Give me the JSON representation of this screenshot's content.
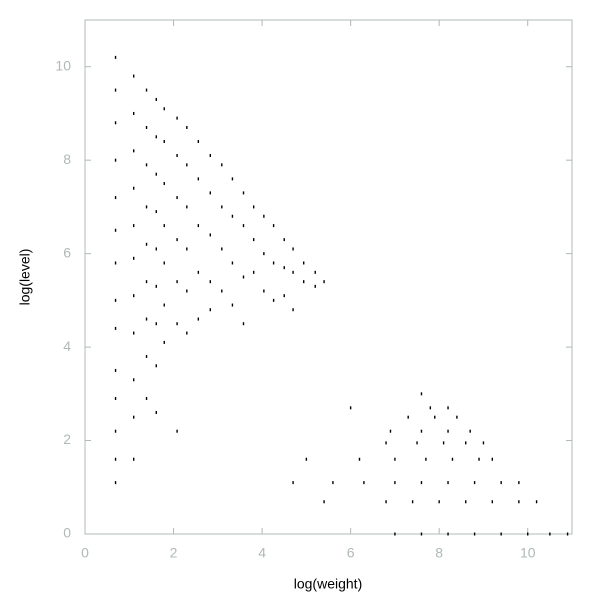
{
  "chart_data": {
    "type": "scatter",
    "xlabel": "log(weight)",
    "ylabel": "log(level)",
    "color": "#000000",
    "axis_color": "#b0b8b8",
    "xlim": [
      0,
      11
    ],
    "ylim": [
      0,
      11
    ],
    "xticks": [
      0,
      2,
      4,
      6,
      8,
      10
    ],
    "yticks": [
      0,
      2,
      4,
      6,
      8,
      10
    ],
    "x": [
      0.69,
      0.69,
      0.69,
      0.69,
      0.69,
      0.69,
      0.69,
      0.69,
      0.69,
      0.69,
      0.69,
      0.69,
      0.69,
      0.69,
      1.1,
      1.1,
      1.1,
      1.1,
      1.1,
      1.1,
      1.1,
      1.1,
      1.1,
      1.1,
      1.1,
      1.39,
      1.39,
      1.39,
      1.39,
      1.39,
      1.39,
      1.39,
      1.39,
      1.39,
      1.61,
      1.61,
      1.61,
      1.61,
      1.61,
      1.61,
      1.61,
      1.61,
      1.61,
      1.79,
      1.79,
      1.79,
      1.79,
      1.79,
      1.79,
      1.79,
      2.08,
      2.08,
      2.08,
      2.08,
      2.08,
      2.08,
      2.08,
      2.3,
      2.3,
      2.3,
      2.3,
      2.3,
      2.3,
      2.56,
      2.56,
      2.56,
      2.56,
      2.56,
      2.83,
      2.83,
      2.83,
      2.83,
      2.83,
      3.09,
      3.09,
      3.09,
      3.09,
      3.33,
      3.33,
      3.33,
      3.33,
      3.58,
      3.58,
      3.58,
      3.58,
      3.81,
      3.81,
      3.81,
      4.04,
      4.04,
      4.04,
      4.26,
      4.26,
      4.26,
      4.5,
      4.5,
      4.5,
      4.7,
      4.7,
      4.7,
      4.94,
      4.94,
      5.2,
      5.2,
      5.4,
      7.0,
      7.6,
      8.2,
      8.8,
      9.4,
      10.0,
      10.5,
      10.9,
      5.4,
      6.8,
      7.4,
      8.0,
      8.6,
      9.2,
      9.8,
      10.2,
      4.7,
      5.6,
      6.3,
      7.0,
      7.6,
      8.2,
      8.8,
      9.4,
      9.8,
      5.0,
      6.2,
      7.0,
      7.7,
      8.3,
      8.9,
      9.2,
      6.8,
      7.5,
      8.1,
      8.6,
      9.0,
      6.9,
      7.6,
      8.2,
      8.7,
      7.3,
      7.9,
      8.4,
      6.0,
      7.8,
      8.2,
      7.6
    ],
    "values": [
      10.2,
      9.5,
      8.8,
      8.0,
      7.2,
      6.5,
      5.8,
      5.0,
      4.4,
      3.5,
      2.9,
      2.2,
      1.6,
      1.1,
      9.8,
      9.0,
      8.2,
      7.4,
      6.6,
      5.9,
      5.1,
      4.3,
      3.3,
      2.5,
      1.6,
      9.5,
      8.7,
      7.9,
      7.0,
      6.2,
      5.4,
      4.6,
      3.8,
      2.9,
      9.3,
      8.5,
      7.7,
      6.9,
      6.1,
      5.3,
      4.5,
      3.6,
      2.6,
      9.1,
      8.4,
      7.5,
      6.6,
      5.8,
      4.9,
      4.1,
      8.9,
      8.1,
      7.2,
      6.3,
      5.4,
      4.5,
      2.2,
      8.7,
      7.9,
      7.0,
      6.1,
      5.2,
      4.3,
      8.4,
      7.6,
      6.6,
      5.6,
      4.6,
      8.1,
      7.3,
      6.4,
      5.4,
      4.8,
      7.9,
      7.0,
      6.1,
      5.2,
      7.6,
      6.8,
      5.8,
      4.9,
      7.3,
      6.6,
      5.5,
      4.5,
      7.0,
      6.3,
      5.6,
      6.8,
      6.0,
      5.2,
      6.6,
      5.8,
      5.0,
      6.3,
      5.7,
      5.1,
      6.1,
      5.6,
      4.8,
      5.8,
      5.4,
      5.6,
      5.3,
      5.4,
      0,
      0,
      0,
      0,
      0,
      0,
      0,
      0,
      0.69,
      0.69,
      0.69,
      0.69,
      0.69,
      0.69,
      0.69,
      0.69,
      1.1,
      1.1,
      1.1,
      1.1,
      1.1,
      1.1,
      1.1,
      1.1,
      1.1,
      1.6,
      1.6,
      1.6,
      1.6,
      1.6,
      1.6,
      1.6,
      1.95,
      1.95,
      1.95,
      1.95,
      1.95,
      2.2,
      2.2,
      2.2,
      2.2,
      2.5,
      2.5,
      2.5,
      2.7,
      2.7,
      2.7,
      3.0
    ]
  }
}
